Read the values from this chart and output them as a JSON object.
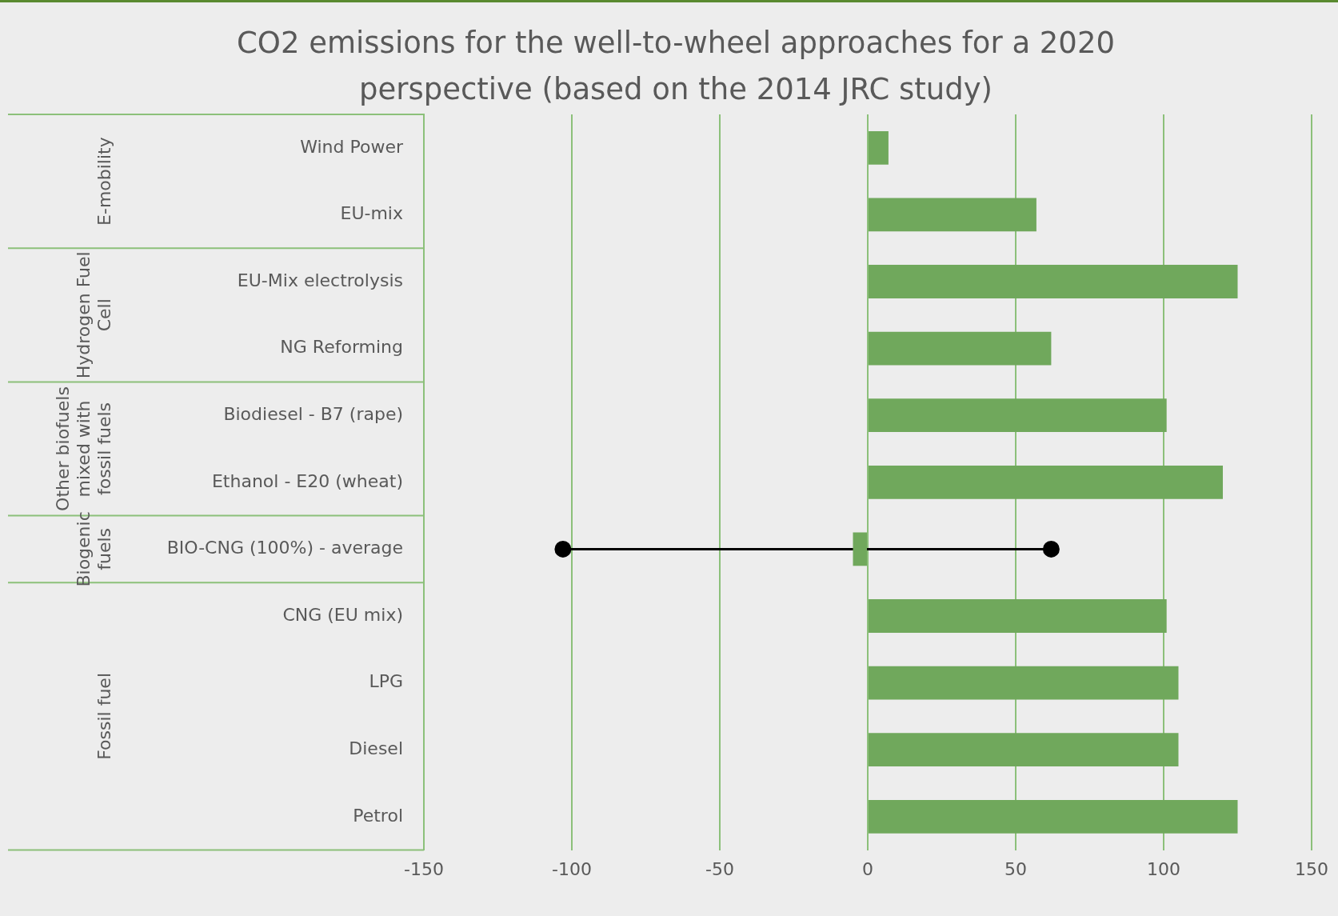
{
  "chart_data": {
    "type": "bar",
    "orientation": "horizontal",
    "title": "CO2 emissions for the well-to-wheel approaches for a 2020 perspective (based on the 2014 JRC study)",
    "categories": [
      "Wind Power",
      "EU-mix",
      "EU-Mix electrolysis",
      "NG Reforming",
      "Biodiesel - B7 (rape)",
      "Ethanol - E20 (wheat)",
      "BIO-CNG (100%) - average",
      "CNG (EU mix)",
      "LPG",
      "Diesel",
      "Petrol"
    ],
    "series": [
      {
        "type": "bar",
        "color": "#70a85c",
        "values": [
          7,
          57,
          125,
          62,
          101,
          120,
          -5,
          101,
          105,
          105,
          125
        ]
      },
      {
        "type": "line",
        "color": "#000000",
        "marker": "circle",
        "x": [
          "BIO-CNG (100%) - average",
          "BIO-CNG (100%) - average"
        ],
        "values": [
          -103,
          62
        ]
      }
    ],
    "annotations": [
      "E-mobility",
      "Hydrogen Fuel Cell",
      "Other biofuels mixed with fossil fuels",
      "Biogenic fuels",
      "Fossil fuel"
    ],
    "xlim": [
      -150,
      150
    ],
    "xticks": [
      -150,
      -100,
      -50,
      0,
      50,
      100,
      150
    ],
    "grid": "x",
    "legend": false
  }
}
